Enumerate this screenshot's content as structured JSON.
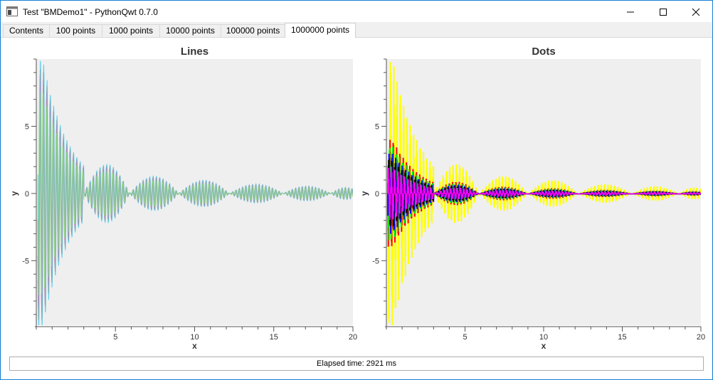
{
  "window": {
    "title": "Test \"BMDemo1\" - PythonQwt 0.7.0",
    "icons": {
      "app": "app-window-icon",
      "minimize": "minimize-icon",
      "maximize": "maximize-icon",
      "close": "close-icon"
    }
  },
  "tabs": [
    {
      "label": "Contents",
      "active": false
    },
    {
      "label": "100 points",
      "active": false
    },
    {
      "label": "1000 points",
      "active": false
    },
    {
      "label": "10000 points",
      "active": false
    },
    {
      "label": "100000 points",
      "active": false
    },
    {
      "label": "1000000 points",
      "active": true
    }
  ],
  "colors": {
    "canvas": "#efefef",
    "lines_series": [
      "#44c8ee",
      "#7aa6a8",
      "#8f98c8",
      "#b890b8",
      "#88e082"
    ],
    "dots_series": [
      "#ffff00",
      "#ff0000",
      "#00ff00",
      "#0000ff",
      "#000000",
      "#ff00ff"
    ]
  },
  "chart_data": [
    {
      "type": "line",
      "title": "Lines",
      "xlabel": "x",
      "ylabel": "y",
      "xlim": [
        0,
        20
      ],
      "ylim": [
        -9.8,
        10
      ],
      "xticks": [
        5,
        10,
        15,
        20
      ],
      "yticks": [
        -5,
        0,
        5
      ],
      "grid": false,
      "series_model": {
        "function": "decaying_sine_envelope",
        "points": 1000000
      }
    },
    {
      "type": "scatter",
      "title": "Dots",
      "xlabel": "x",
      "ylabel": "y",
      "xlim": [
        0,
        20
      ],
      "ylim": [
        -9.8,
        10
      ],
      "xticks": [
        5,
        10,
        15,
        20
      ],
      "yticks": [
        -5,
        0,
        5
      ],
      "grid": false,
      "series_model": {
        "function": "decaying_sine_envelope",
        "points": 1000000
      }
    }
  ],
  "status": {
    "text": "Elapsed time: 2921 ms"
  }
}
